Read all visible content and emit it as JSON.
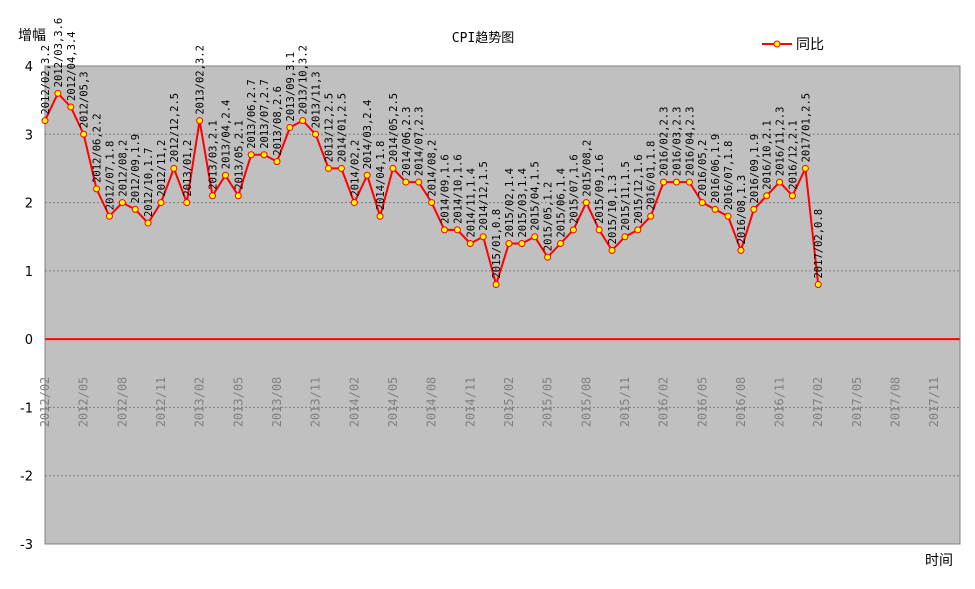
{
  "chart_data": {
    "type": "line",
    "title": "CPI趋势图",
    "ylabel": "增幅",
    "xlabel": "时间",
    "ylim": [
      -3,
      4
    ],
    "yticks": [
      "4",
      "3",
      "2",
      "1",
      "0",
      "-1",
      "-2",
      "-3"
    ],
    "grid": true,
    "legend_position": "top-right",
    "colors": {
      "line": "#ff0000",
      "marker_fill": "#ffff00",
      "marker_stroke": "#ff0000",
      "zero_line": "#ff0000",
      "plot_bg": "#c0c0c0",
      "grid": "#808080"
    },
    "x_axis_labels": [
      "2012/02",
      "2012/05",
      "2012/08",
      "2012/11",
      "2013/02",
      "2013/05",
      "2013/08",
      "2013/11",
      "2014/02",
      "2014/05",
      "2014/08",
      "2014/11",
      "2015/02",
      "2015/05",
      "2015/08",
      "2015/11",
      "2016/02",
      "2016/05",
      "2016/08",
      "2016/11",
      "2017/02",
      "2017/05",
      "2017/08",
      "2017/11"
    ],
    "x_range": [
      "2012/02",
      "2018/01"
    ],
    "series": [
      {
        "name": "同比",
        "points": [
          {
            "x": "2012/02",
            "y": 3.2,
            "label": "2012/02,3.2"
          },
          {
            "x": "2012/03",
            "y": 3.6,
            "label": "2012/03,3.6"
          },
          {
            "x": "2012/04",
            "y": 3.4,
            "label": "2012/04,3.4"
          },
          {
            "x": "2012/05",
            "y": 3.0,
            "label": "2012/05,3"
          },
          {
            "x": "2012/06",
            "y": 2.2,
            "label": "2012/06,2.2"
          },
          {
            "x": "2012/07",
            "y": 1.8,
            "label": "2012/07,1.8"
          },
          {
            "x": "2012/08",
            "y": 2.0,
            "label": "2012/08,2"
          },
          {
            "x": "2012/09",
            "y": 1.9,
            "label": "2012/09,1.9"
          },
          {
            "x": "2012/10",
            "y": 1.7,
            "label": "2012/10,1.7"
          },
          {
            "x": "2012/11",
            "y": 2.0,
            "label": "2012/11,2"
          },
          {
            "x": "2012/12",
            "y": 2.5,
            "label": "2012/12,2.5"
          },
          {
            "x": "2013/01",
            "y": 2.0,
            "label": "2013/01,2"
          },
          {
            "x": "2013/02",
            "y": 3.2,
            "label": "2013/02,3.2"
          },
          {
            "x": "2013/03",
            "y": 2.1,
            "label": "2013/03,2.1"
          },
          {
            "x": "2013/04",
            "y": 2.4,
            "label": "2013/04,2.4"
          },
          {
            "x": "2013/05",
            "y": 2.1,
            "label": "2013/05,2.1"
          },
          {
            "x": "2013/06",
            "y": 2.7,
            "label": "2013/06,2.7"
          },
          {
            "x": "2013/07",
            "y": 2.7,
            "label": "2013/07,2.7"
          },
          {
            "x": "2013/08",
            "y": 2.6,
            "label": "2013/08,2.6"
          },
          {
            "x": "2013/09",
            "y": 3.1,
            "label": "2013/09,3.1"
          },
          {
            "x": "2013/10",
            "y": 3.2,
            "label": "2013/10,3.2"
          },
          {
            "x": "2013/11",
            "y": 3.0,
            "label": "2013/11,3"
          },
          {
            "x": "2013/12",
            "y": 2.5,
            "label": "2013/12,2.5"
          },
          {
            "x": "2014/01",
            "y": 2.5,
            "label": "2014/01,2.5"
          },
          {
            "x": "2014/02",
            "y": 2.0,
            "label": "2014/02,2"
          },
          {
            "x": "2014/03",
            "y": 2.4,
            "label": "2014/03,2.4"
          },
          {
            "x": "2014/04",
            "y": 1.8,
            "label": "2014/04,1.8"
          },
          {
            "x": "2014/05",
            "y": 2.5,
            "label": "2014/05,2.5"
          },
          {
            "x": "2014/06",
            "y": 2.3,
            "label": "2014/06,2.3"
          },
          {
            "x": "2014/07",
            "y": 2.3,
            "label": "2014/07,2.3"
          },
          {
            "x": "2014/08",
            "y": 2.0,
            "label": "2014/08,2"
          },
          {
            "x": "2014/09",
            "y": 1.6,
            "label": "2014/09,1.6"
          },
          {
            "x": "2014/10",
            "y": 1.6,
            "label": "2014/10,1.6"
          },
          {
            "x": "2014/11",
            "y": 1.4,
            "label": "2014/11,1.4"
          },
          {
            "x": "2014/12",
            "y": 1.5,
            "label": "2014/12,1.5"
          },
          {
            "x": "2015/01",
            "y": 0.8,
            "label": "2015/01,0.8"
          },
          {
            "x": "2015/02",
            "y": 1.4,
            "label": "2015/02,1.4"
          },
          {
            "x": "2015/03",
            "y": 1.4,
            "label": "2015/03,1.4"
          },
          {
            "x": "2015/04",
            "y": 1.5,
            "label": "2015/04,1.5"
          },
          {
            "x": "2015/05",
            "y": 1.2,
            "label": "2015/05,1.2"
          },
          {
            "x": "2015/06",
            "y": 1.4,
            "label": "2015/06,1.4"
          },
          {
            "x": "2015/07",
            "y": 1.6,
            "label": "2015/07,1.6"
          },
          {
            "x": "2015/08",
            "y": 2.0,
            "label": "2015/08,2"
          },
          {
            "x": "2015/09",
            "y": 1.6,
            "label": "2015/09,1.6"
          },
          {
            "x": "2015/10",
            "y": 1.3,
            "label": "2015/10,1.3"
          },
          {
            "x": "2015/11",
            "y": 1.5,
            "label": "2015/11,1.5"
          },
          {
            "x": "2015/12",
            "y": 1.6,
            "label": "2015/12,1.6"
          },
          {
            "x": "2016/01",
            "y": 1.8,
            "label": "2016/01,1.8"
          },
          {
            "x": "2016/02",
            "y": 2.3,
            "label": "2016/02,2.3"
          },
          {
            "x": "2016/03",
            "y": 2.3,
            "label": "2016/03,2.3"
          },
          {
            "x": "2016/04",
            "y": 2.3,
            "label": "2016/04,2.3"
          },
          {
            "x": "2016/05",
            "y": 2.0,
            "label": "2016/05,2"
          },
          {
            "x": "2016/06",
            "y": 1.9,
            "label": "2016/06,1.9"
          },
          {
            "x": "2016/07",
            "y": 1.8,
            "label": "2016/07,1.8"
          },
          {
            "x": "2016/08",
            "y": 1.3,
            "label": "2016/08,1.3"
          },
          {
            "x": "2016/09",
            "y": 1.9,
            "label": "2016/09,1.9"
          },
          {
            "x": "2016/10",
            "y": 2.1,
            "label": "2016/10,2.1"
          },
          {
            "x": "2016/11",
            "y": 2.3,
            "label": "2016/11,2.3"
          },
          {
            "x": "2016/12",
            "y": 2.1,
            "label": "2016/12,2.1"
          },
          {
            "x": "2017/01",
            "y": 2.5,
            "label": "2017/01,2.5"
          },
          {
            "x": "2017/02",
            "y": 0.8,
            "label": "2017/02,0.8"
          }
        ]
      }
    ]
  }
}
